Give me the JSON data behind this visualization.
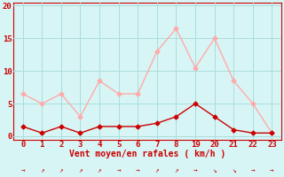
{
  "x_indices": [
    0,
    1,
    2,
    3,
    4,
    5,
    6,
    7,
    8,
    9,
    10,
    11,
    12,
    13
  ],
  "x_labels": [
    "0",
    "1",
    "2",
    "3",
    "4",
    "5",
    "6",
    "7",
    "8",
    "19",
    "20",
    "21",
    "22",
    "23"
  ],
  "y_avg": [
    1.5,
    0.5,
    1.5,
    0.5,
    1.5,
    1.5,
    1.5,
    2.0,
    3.0,
    5.0,
    3.0,
    1.0,
    0.5,
    0.5
  ],
  "y_gust": [
    6.5,
    5.0,
    6.5,
    3.0,
    8.5,
    6.5,
    6.5,
    13.0,
    16.5,
    10.5,
    15.0,
    8.5,
    5.0,
    0.5
  ],
  "xlabel": "Vent moyen/en rafales ( km/h )",
  "ylim": [
    0,
    20
  ],
  "yticks": [
    0,
    5,
    10,
    15,
    20
  ],
  "avg_color": "#cc0000",
  "gust_color": "#ffaaaa",
  "bg_color": "#d8f5f5",
  "grid_color": "#aadddd",
  "label_color": "#cc0000",
  "arrow_dirs": [
    0,
    45,
    45,
    45,
    45,
    0,
    0,
    45,
    45,
    0,
    315,
    315,
    0,
    0
  ]
}
